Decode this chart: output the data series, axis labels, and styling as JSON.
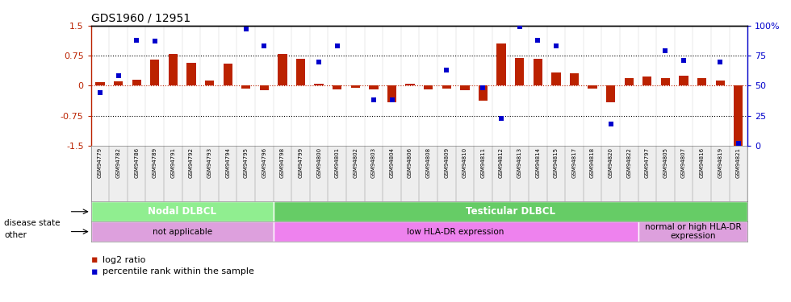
{
  "title": "GDS1960 / 12951",
  "samples": [
    "GSM94779",
    "GSM94782",
    "GSM94786",
    "GSM94789",
    "GSM94791",
    "GSM94792",
    "GSM94793",
    "GSM94794",
    "GSM94795",
    "GSM94796",
    "GSM94798",
    "GSM94799",
    "GSM94800",
    "GSM94801",
    "GSM94802",
    "GSM94803",
    "GSM94804",
    "GSM94806",
    "GSM94808",
    "GSM94809",
    "GSM94810",
    "GSM94811",
    "GSM94812",
    "GSM94813",
    "GSM94814",
    "GSM94815",
    "GSM94817",
    "GSM94818",
    "GSM94820",
    "GSM94822",
    "GSM94797",
    "GSM94805",
    "GSM94807",
    "GSM94816",
    "GSM94819",
    "GSM94821"
  ],
  "log2_ratio": [
    0.08,
    0.1,
    0.15,
    0.65,
    0.8,
    0.58,
    0.12,
    0.55,
    -0.07,
    -0.12,
    0.8,
    0.68,
    0.05,
    -0.1,
    -0.06,
    -0.1,
    -0.42,
    0.05,
    -0.1,
    -0.08,
    -0.12,
    -0.38,
    1.05,
    0.7,
    0.68,
    0.32,
    0.3,
    -0.08,
    -0.42,
    0.18,
    0.22,
    0.18,
    0.25,
    0.18,
    0.12,
    -1.55
  ],
  "percentile_rank": [
    44,
    58,
    88,
    87,
    null,
    null,
    null,
    null,
    97,
    83,
    null,
    null,
    70,
    83,
    null,
    38,
    38,
    null,
    null,
    63,
    null,
    48,
    23,
    99,
    88,
    83,
    null,
    null,
    18,
    null,
    null,
    79,
    71,
    null,
    70,
    2
  ],
  "disease_state_groups": [
    {
      "label": "Nodal DLBCL",
      "start": 0,
      "end": 10,
      "color": "#90EE90"
    },
    {
      "label": "Testicular DLBCL",
      "start": 10,
      "end": 36,
      "color": "#66CC66"
    }
  ],
  "other_groups": [
    {
      "label": "not applicable",
      "start": 0,
      "end": 10,
      "color": "#DDA0DD"
    },
    {
      "label": "low HLA-DR expression",
      "start": 10,
      "end": 30,
      "color": "#EE82EE"
    },
    {
      "label": "normal or high HLA-DR\nexpression",
      "start": 30,
      "end": 36,
      "color": "#DDA0DD"
    }
  ],
  "bar_color": "#BB2200",
  "dot_color": "#0000CC",
  "ylim_left": [
    -1.5,
    1.5
  ],
  "ylim_right": [
    0,
    100
  ],
  "yticks_left": [
    -1.5,
    -0.75,
    0.0,
    0.75,
    1.5
  ],
  "ytick_labels_left": [
    "-1.5",
    "-0.75",
    "0",
    "0.75",
    "1.5"
  ],
  "yticks_right": [
    0,
    25,
    50,
    75,
    100
  ],
  "ytick_labels_right": [
    "0",
    "25",
    "50",
    "75",
    "100%"
  ],
  "bar_width": 0.5,
  "dot_size": 20,
  "legend_bar_label": "log2 ratio",
  "legend_dot_label": "percentile rank within the sample",
  "disease_state_label": "disease state",
  "other_label": "other"
}
